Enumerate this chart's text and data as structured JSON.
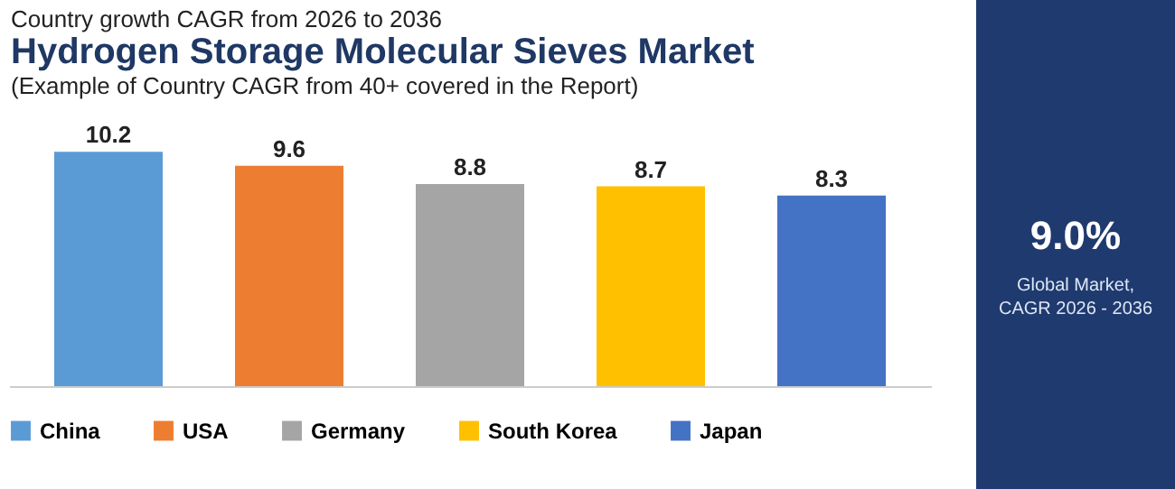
{
  "chart_data": [
    {
      "type": "bar",
      "title": "Hydrogen Storage Molecular Sieves Market",
      "subtitle": "(Example of Country CAGR from 40+ covered in the Report)",
      "annotations": [
        "Country growth CAGR from 2026 to 2036"
      ],
      "categories": [
        null,
        null,
        null,
        null,
        null
      ],
      "stacked": true,
      "series": [
        {
          "name": "China",
          "color": "#5b9bd5",
          "values": [
            10.2,
            null,
            null,
            null,
            null
          ]
        },
        {
          "name": "USA",
          "color": "#ed7d31",
          "values": [
            null,
            9.6,
            null,
            null,
            null
          ]
        },
        {
          "name": "Germany",
          "color": "#a5a5a5",
          "values": [
            null,
            null,
            8.8,
            null,
            null
          ]
        },
        {
          "name": "South Korea",
          "color": "#ffc000",
          "values": [
            null,
            null,
            null,
            8.7,
            null
          ]
        },
        {
          "name": "Japan",
          "color": "#4472c4",
          "values": [
            null,
            null,
            null,
            null,
            8.3
          ]
        }
      ],
      "data_labels": true,
      "legend": "bottom",
      "tick_labels": false
    },
    {
      "type": "other",
      "annotations": [
        "9.0%",
        "Global Market, CAGR 2026 - 2036"
      ]
    }
  ]
}
